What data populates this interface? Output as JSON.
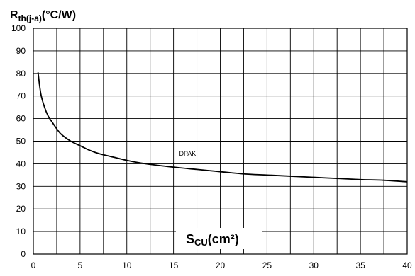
{
  "chart_data": {
    "type": "line",
    "ylabel": {
      "main": "R",
      "sub": "th(j-a)",
      "unit": "(°C/W)"
    },
    "xlabel": {
      "main": "S",
      "sub": "CU",
      "unit": "(cm²)"
    },
    "xlim": [
      0,
      40
    ],
    "ylim": [
      0,
      100
    ],
    "x_ticks": [
      "0",
      "5",
      "10",
      "15",
      "20",
      "25",
      "30",
      "35",
      "40"
    ],
    "y_ticks": [
      "0",
      "10",
      "20",
      "30",
      "40",
      "50",
      "60",
      "70",
      "80",
      "90",
      "100"
    ],
    "grid": true,
    "series": [
      {
        "name": "DPAK",
        "x": [
          0.5,
          0.8,
          1.2,
          1.6,
          2,
          2.5,
          3,
          4,
          5,
          6,
          7,
          8,
          10,
          12,
          15,
          17.5,
          20,
          22.5,
          25,
          27.5,
          30,
          32.5,
          35,
          37.5,
          40
        ],
        "y": [
          80.5,
          71,
          65,
          61,
          58.5,
          55.5,
          53,
          50,
          48,
          46,
          44.5,
          43.5,
          41.5,
          40,
          38.5,
          37.5,
          36.5,
          35.5,
          35,
          34.5,
          34,
          33.5,
          33,
          32.7,
          32
        ]
      }
    ],
    "annotations": [
      {
        "text": "DPAK",
        "x": 16.5,
        "y": 43.5
      }
    ]
  }
}
